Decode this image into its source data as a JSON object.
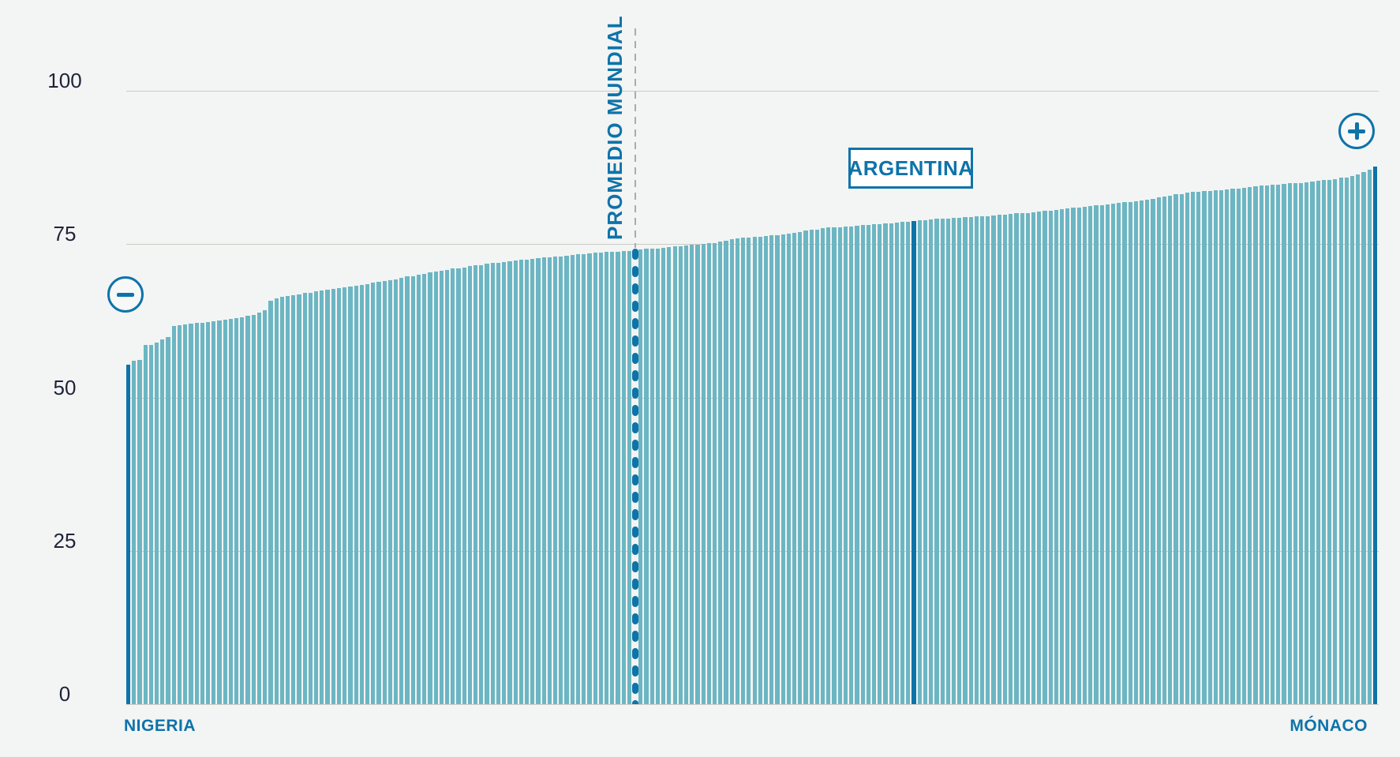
{
  "chart_data": {
    "type": "bar",
    "title": "",
    "xlabel": "",
    "ylabel": "",
    "ylim": [
      0,
      100
    ],
    "yticks": [
      0,
      25,
      50,
      75,
      100
    ],
    "ytick_labels": [
      "0",
      "25",
      "50",
      "75",
      "100"
    ],
    "grid": true,
    "legend_position": "none",
    "values": [
      55.4,
      56.0,
      56.1,
      58.5,
      58.6,
      59.0,
      59.4,
      59.8,
      61.7,
      61.8,
      61.9,
      62.0,
      62.1,
      62.2,
      62.3,
      62.4,
      62.6,
      62.7,
      62.8,
      63.0,
      63.1,
      63.3,
      63.4,
      63.8,
      64.2,
      65.8,
      66.2,
      66.4,
      66.5,
      66.7,
      66.8,
      67.0,
      67.1,
      67.3,
      67.4,
      67.6,
      67.7,
      67.8,
      67.9,
      68.1,
      68.2,
      68.4,
      68.5,
      68.7,
      68.8,
      69.0,
      69.1,
      69.3,
      69.5,
      69.7,
      69.8,
      70.0,
      70.2,
      70.4,
      70.5,
      70.7,
      70.8,
      71.0,
      71.1,
      71.2,
      71.4,
      71.5,
      71.6,
      71.8,
      71.9,
      72.0,
      72.1,
      72.2,
      72.3,
      72.4,
      72.5,
      72.6,
      72.7,
      72.8,
      72.9,
      73.0,
      73.0,
      73.1,
      73.2,
      73.3,
      73.4,
      73.5,
      73.6,
      73.6,
      73.7,
      73.8,
      73.8,
      73.9,
      73.9,
      74.4,
      74.1,
      74.2,
      74.3,
      74.3,
      74.4,
      74.5,
      74.6,
      74.7,
      74.8,
      74.9,
      74.9,
      75.0,
      75.1,
      75.2,
      75.4,
      75.6,
      75.8,
      75.9,
      76.0,
      76.1,
      76.2,
      76.2,
      76.3,
      76.4,
      76.5,
      76.6,
      76.7,
      76.9,
      77.0,
      77.2,
      77.3,
      77.4,
      77.6,
      77.7,
      77.8,
      77.8,
      77.9,
      77.9,
      78.0,
      78.1,
      78.1,
      78.2,
      78.3,
      78.4,
      78.4,
      78.5,
      78.6,
      78.7,
      78.8,
      78.9,
      78.9,
      79.0,
      79.1,
      79.1,
      79.2,
      79.3,
      79.3,
      79.4,
      79.4,
      79.5,
      79.5,
      79.6,
      79.7,
      79.8,
      79.8,
      79.9,
      80.0,
      80.1,
      80.1,
      80.2,
      80.3,
      80.4,
      80.5,
      80.6,
      80.7,
      80.8,
      80.9,
      81.0,
      81.1,
      81.2,
      81.3,
      81.4,
      81.5,
      81.6,
      81.7,
      81.8,
      81.9,
      82.0,
      82.1,
      82.3,
      82.4,
      82.6,
      82.8,
      82.9,
      83.1,
      83.2,
      83.4,
      83.5,
      83.5,
      83.6,
      83.7,
      83.8,
      83.8,
      83.9,
      84.0,
      84.1,
      84.2,
      84.3,
      84.4,
      84.5,
      84.6,
      84.7,
      84.7,
      84.8,
      84.9,
      84.9,
      85.0,
      85.1,
      85.2,
      85.3,
      85.4,
      85.5,
      85.6,
      85.8,
      85.9,
      86.1,
      86.4,
      86.7,
      87.1,
      87.6
    ],
    "highlights": {
      "nigeria": {
        "index": 0,
        "value": 55.4
      },
      "world_average": {
        "index": 89,
        "value": 74.4,
        "style": "dotted"
      },
      "argentina": {
        "index": 138,
        "value": 78.8
      },
      "monaco": {
        "index": 219,
        "value": 87.6
      }
    },
    "annotations": {
      "min_label": "NIGERIA",
      "max_label": "MÓNACO",
      "argentina_label": "ARGENTINA",
      "world_average_label": "PROMEDIO MUNDIAL"
    },
    "colors": {
      "background": "#f3f4f4",
      "bar": "#6cb6c3",
      "highlight": "#0e73a9",
      "grid": "#ccc9c2",
      "dashed_guide": "#ababab",
      "tick_text": "#1e2438"
    }
  }
}
